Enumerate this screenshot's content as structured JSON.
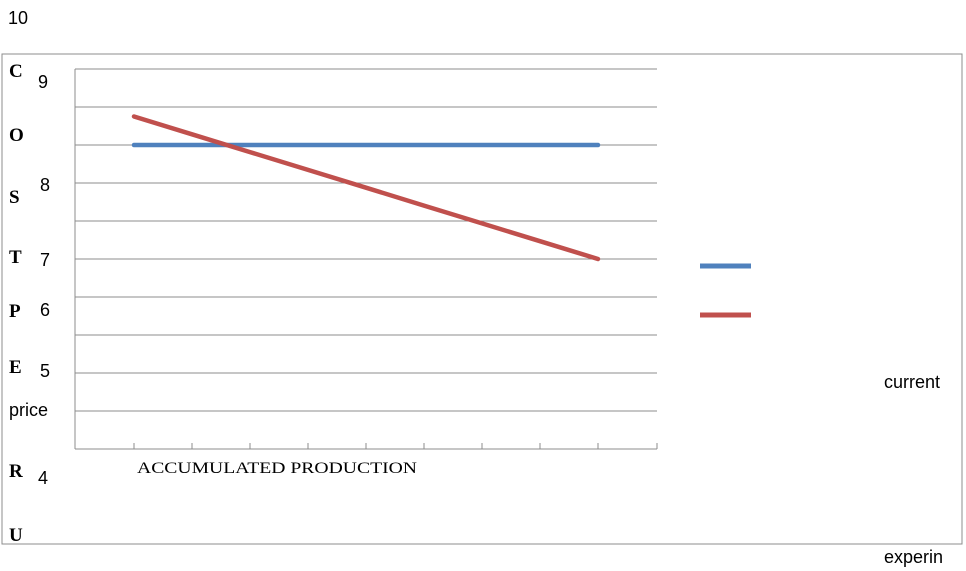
{
  "chart_data": {
    "type": "line",
    "title": "",
    "xlabel": "ACCUMULATED PRODUCTION",
    "ylabel_letters": [
      "C",
      "O",
      "S",
      "T",
      "P",
      "E",
      "R",
      "U"
    ],
    "y_tick_labels": [
      "10",
      "9",
      "8",
      "7",
      "6",
      "5",
      "price",
      "4"
    ],
    "ylim": [
      4,
      9
    ],
    "x_points": 9,
    "series": [
      {
        "color": "#4f81bd",
        "values": [
          8.2,
          8.2,
          8.2,
          8.2,
          8.2,
          8.2,
          8.2,
          8.2,
          8.2
        ]
      },
      {
        "color": "#c0504d",
        "values": [
          8.6,
          8.35,
          8.1,
          7.85,
          7.6,
          7.35,
          7.1,
          6.85,
          6.6
        ]
      }
    ],
    "legend_position": "right",
    "grid": true
  },
  "notes": {
    "current": "current",
    "experin": "experin"
  }
}
